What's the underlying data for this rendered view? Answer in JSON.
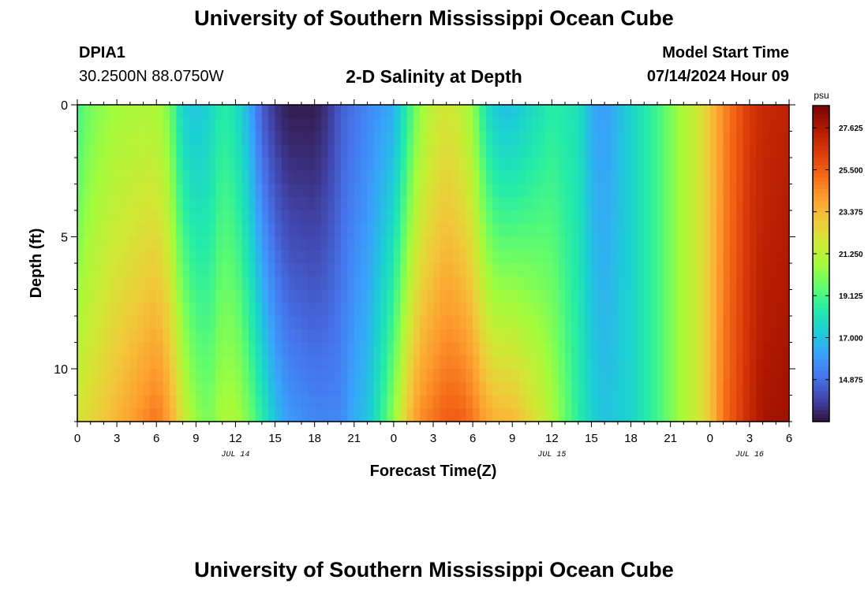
{
  "header": {
    "title": "University of Southern Mississippi Ocean Cube",
    "station": "DPIA1",
    "coords": "30.2500N  88.0750W",
    "subtitle": "2-D Salinity at Depth",
    "model_label": "Model Start Time",
    "model_time": "07/14/2024 Hour 09"
  },
  "footer": {
    "title": "University of Southern Mississippi Ocean Cube"
  },
  "chart_data": {
    "type": "heatmap",
    "title": "2-D Salinity at Depth",
    "xlabel": "Forecast Time(Z)",
    "ylabel": "Depth (ft)",
    "x_ticks": [
      "0",
      "3",
      "6",
      "9",
      "12",
      "15",
      "18",
      "21",
      "0",
      "3",
      "6",
      "9",
      "12",
      "15",
      "18",
      "21",
      "0",
      "3",
      "6"
    ],
    "x_range_hours": [
      0,
      54
    ],
    "date_labels": [
      {
        "text": "JUL 14",
        "hour": 12
      },
      {
        "text": "JUL 15",
        "hour": 36
      },
      {
        "text": "JUL 16",
        "hour": 51
      }
    ],
    "y_ticks": [
      0,
      5,
      10
    ],
    "y_range_ft": [
      0,
      12
    ],
    "colorbar": {
      "unit": "psu",
      "ticks": [
        "27.625",
        "25.500",
        "23.375",
        "21.250",
        "19.125",
        "17.000",
        "14.875"
      ],
      "range": [
        12.75,
        28.75
      ]
    },
    "colors": {
      "scale": [
        "#30123b",
        "#4145ab",
        "#4675ed",
        "#39a2fc",
        "#1bcfd4",
        "#24eca6",
        "#61fc6c",
        "#a4fc3b",
        "#d1e834",
        "#f3c63a",
        "#fe9b2d",
        "#f36315",
        "#d93807",
        "#b11901",
        "#7a0403"
      ]
    },
    "salinity_profile": {
      "hours": [
        0,
        1,
        3,
        5,
        6,
        7,
        7.5,
        8,
        9,
        10,
        11,
        12,
        13,
        14,
        15,
        16,
        18,
        19,
        20,
        21,
        22,
        23,
        24,
        25,
        26,
        27,
        28,
        29,
        30,
        31,
        32,
        33,
        35,
        36,
        38,
        39,
        40,
        42,
        44,
        45,
        46,
        47,
        48,
        49,
        50,
        51,
        52,
        54
      ],
      "surface": [
        19.0,
        20.0,
        20.8,
        21.0,
        21.0,
        20.0,
        18.5,
        17.5,
        17.0,
        17.5,
        18.5,
        18.0,
        16.5,
        14.5,
        13.5,
        13.0,
        13.0,
        13.5,
        14.5,
        15.0,
        15.5,
        16.0,
        16.5,
        18.5,
        20.5,
        21.5,
        22.0,
        21.5,
        20.5,
        18.0,
        17.0,
        17.0,
        18.0,
        18.5,
        18.0,
        16.5,
        16.0,
        17.5,
        19.0,
        20.0,
        21.0,
        21.8,
        23.0,
        24.5,
        25.5,
        26.5,
        27.0,
        27.3
      ],
      "bottom": [
        22.0,
        22.5,
        23.5,
        24.5,
        25.0,
        24.0,
        23.0,
        22.0,
        20.5,
        20.0,
        21.0,
        21.0,
        20.0,
        18.5,
        17.0,
        16.0,
        15.5,
        15.5,
        15.5,
        16.5,
        17.0,
        18.5,
        20.5,
        23.0,
        24.5,
        25.0,
        25.5,
        25.5,
        25.0,
        24.0,
        23.5,
        23.5,
        22.0,
        21.0,
        18.5,
        17.5,
        17.0,
        17.5,
        19.0,
        20.0,
        21.0,
        21.8,
        23.0,
        25.0,
        26.0,
        27.0,
        27.8,
        28.0
      ]
    }
  }
}
